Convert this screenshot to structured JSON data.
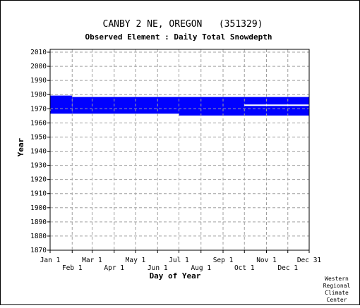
{
  "chart_data": {
    "type": "heatmap",
    "title": "CANBY 2 NE, OREGON   (351329)",
    "subtitle": "Observed Element : Daily Total Snowdepth",
    "xlabel": "Day of Year",
    "ylabel": "Year",
    "xlim": [
      1,
      365
    ],
    "ylim": [
      1870,
      2012
    ],
    "x_ticks_upper": [
      {
        "label": "Jan 1",
        "day": 1
      },
      {
        "label": "Mar 1",
        "day": 60
      },
      {
        "label": "May 1",
        "day": 121
      },
      {
        "label": "Jul 1",
        "day": 182
      },
      {
        "label": "Sep 1",
        "day": 244
      },
      {
        "label": "Nov 1",
        "day": 305
      },
      {
        "label": "Dec 31",
        "day": 365
      }
    ],
    "x_ticks_lower": [
      {
        "label": "Feb 1",
        "day": 32
      },
      {
        "label": "Apr 1",
        "day": 91
      },
      {
        "label": "Jun 1",
        "day": 152
      },
      {
        "label": "Aug 1",
        "day": 213
      },
      {
        "label": "Oct 1",
        "day": 274
      },
      {
        "label": "Dec 1",
        "day": 335
      }
    ],
    "y_ticks": [
      1870,
      1880,
      1890,
      1900,
      1910,
      1920,
      1930,
      1940,
      1950,
      1960,
      1970,
      1980,
      1990,
      2000,
      2010
    ],
    "grid": true,
    "data_color": "#0000ff",
    "gap_color": "#ffffff",
    "record_blocks": [
      {
        "day_start": 1,
        "day_end": 32,
        "year_start": 1966.5,
        "year_end": 1979.3
      },
      {
        "day_start": 32,
        "day_end": 182,
        "year_start": 1966.5,
        "year_end": 1978.3
      },
      {
        "day_start": 182,
        "day_end": 365,
        "year_start": 1965.2,
        "year_end": 1978.3
      }
    ],
    "gaps": [
      {
        "day_start": 274,
        "day_end": 365,
        "year": 1972.5
      },
      {
        "day_start": 1,
        "day_end": 2,
        "year": 1969
      }
    ]
  },
  "credit": [
    "Western",
    "Regional",
    "Climate",
    "Center"
  ]
}
